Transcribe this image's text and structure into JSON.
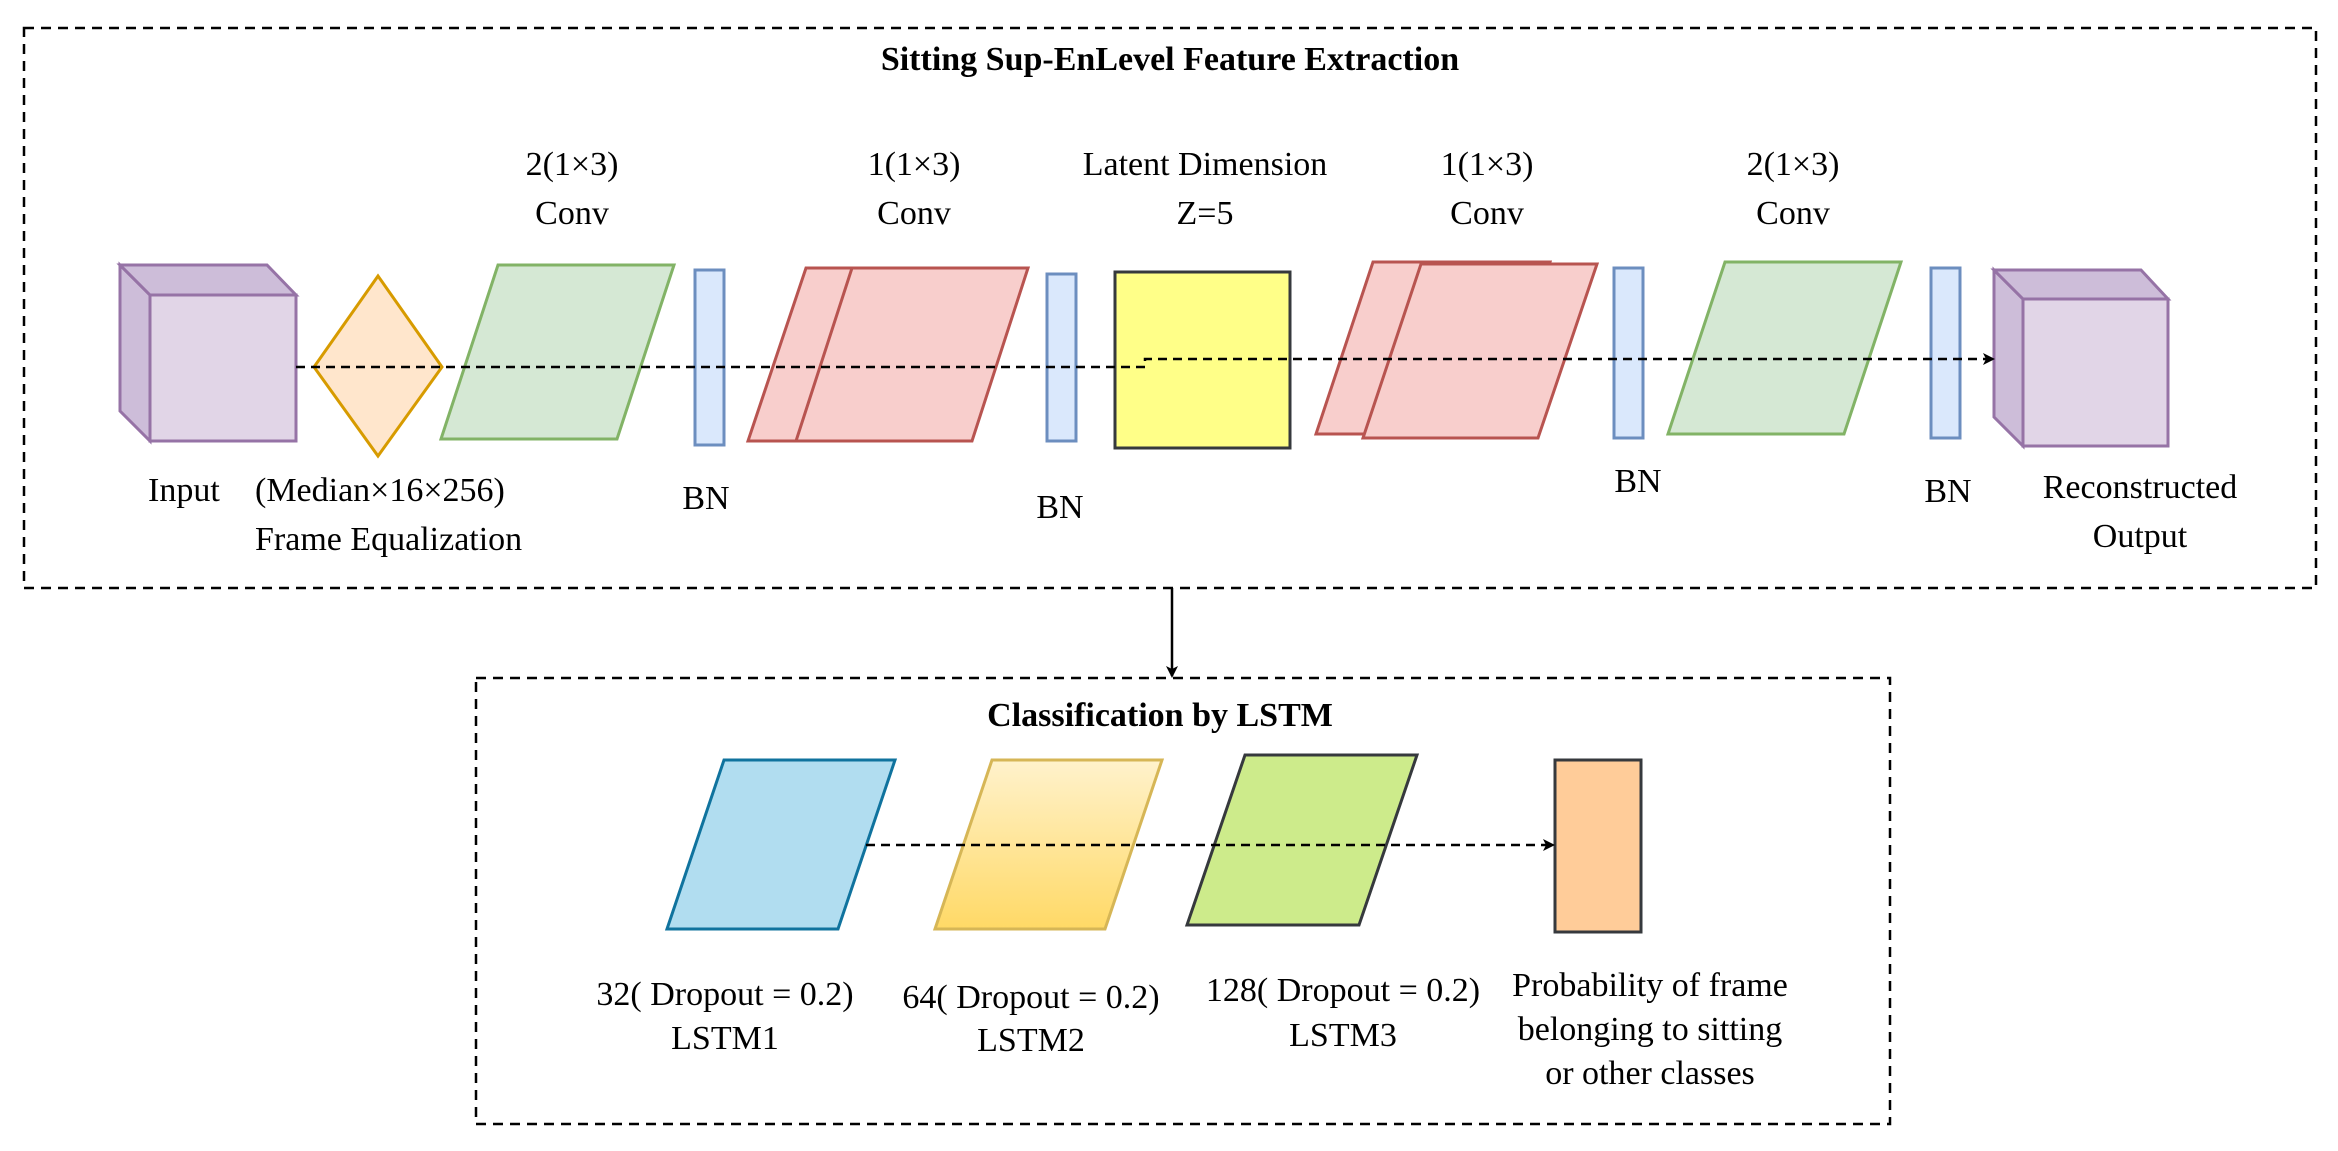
{
  "colors": {
    "cube_fill": "#e1d5e7",
    "cube_side": "#cdbdd9",
    "cube_stroke": "#9673a6",
    "diamond_fill": "#ffe6cc",
    "diamond_stroke": "#d79b00",
    "green_fill": "#d5e8d4",
    "green_stroke": "#82b366",
    "red_fill": "#f8cecc",
    "red_stroke": "#b85450",
    "bn_fill": "#dae8fc",
    "bn_stroke": "#6c8ebf",
    "latent_fill": "#ffff88",
    "latent_stroke": "#36393d",
    "lstm1_fill": "#b1ddf0",
    "lstm1_stroke": "#10739e",
    "lstm2_top": "#fff2cc",
    "lstm2_bottom": "#ffd966",
    "lstm2_stroke": "#d6b656",
    "lstm3_fill": "#cdeb8b",
    "lstm3_stroke": "#36393d",
    "output_fill": "#ffcc99",
    "output_stroke": "#36393d"
  },
  "extraction": {
    "title": "Sitting Sup-EnLevel Feature Extraction",
    "input_label": "Input",
    "equalization_line1": "(Median×16×256)",
    "equalization_line2": "Frame Equalization",
    "conv1_line1": "2(1×3)",
    "conv1_line2": "Conv",
    "bn1": "BN",
    "conv2_line1": "1(1×3)",
    "conv2_line2": "Conv",
    "bn2": "BN",
    "latent_line1": "Latent Dimension",
    "latent_line2": "Z=5",
    "conv3_line1": "1(1×3)",
    "conv3_line2": "Conv",
    "bn3": "BN",
    "conv4_line1": "2(1×3)",
    "conv4_line2": "Conv",
    "bn4": "BN",
    "output_line1": "Reconstructed",
    "output_line2": "Output"
  },
  "classification": {
    "title": "Classification by LSTM",
    "lstm1_line1": "32( Dropout = 0.2)",
    "lstm1_line2": "LSTM1",
    "lstm2_line1": "64( Dropout = 0.2)",
    "lstm2_line2": "LSTM2",
    "lstm3_line1": "128( Dropout = 0.2)",
    "lstm3_line2": "LSTM3",
    "prob_line1": "Probability  of frame",
    "prob_line2": "belonging to sitting",
    "prob_line3": "or other classes"
  }
}
